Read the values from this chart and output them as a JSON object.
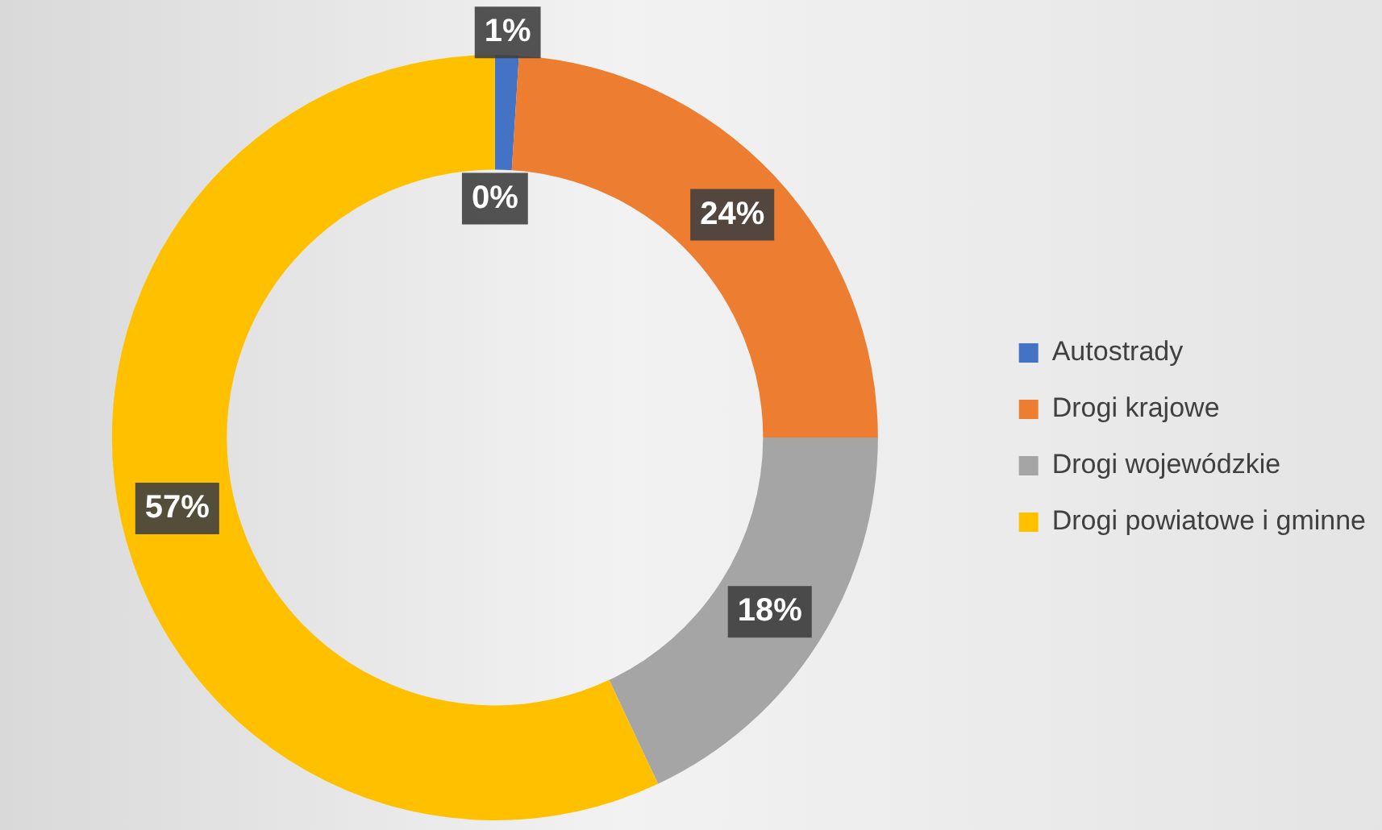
{
  "chart_data": {
    "type": "donut",
    "categories": [
      null,
      "Autostrady",
      "Drogi krajowe",
      "Drogi wojewódzkie",
      "Drogi powiatowe i gminne"
    ],
    "values": [
      0,
      1,
      24,
      18,
      57
    ],
    "colors": [
      "#5b9bd5",
      "#4472c4",
      "#ed7d31",
      "#a5a5a5",
      "#ffc000"
    ],
    "value_labels": [
      "0%",
      "1%",
      "24%",
      "18%",
      "57%"
    ],
    "legend": "right"
  }
}
